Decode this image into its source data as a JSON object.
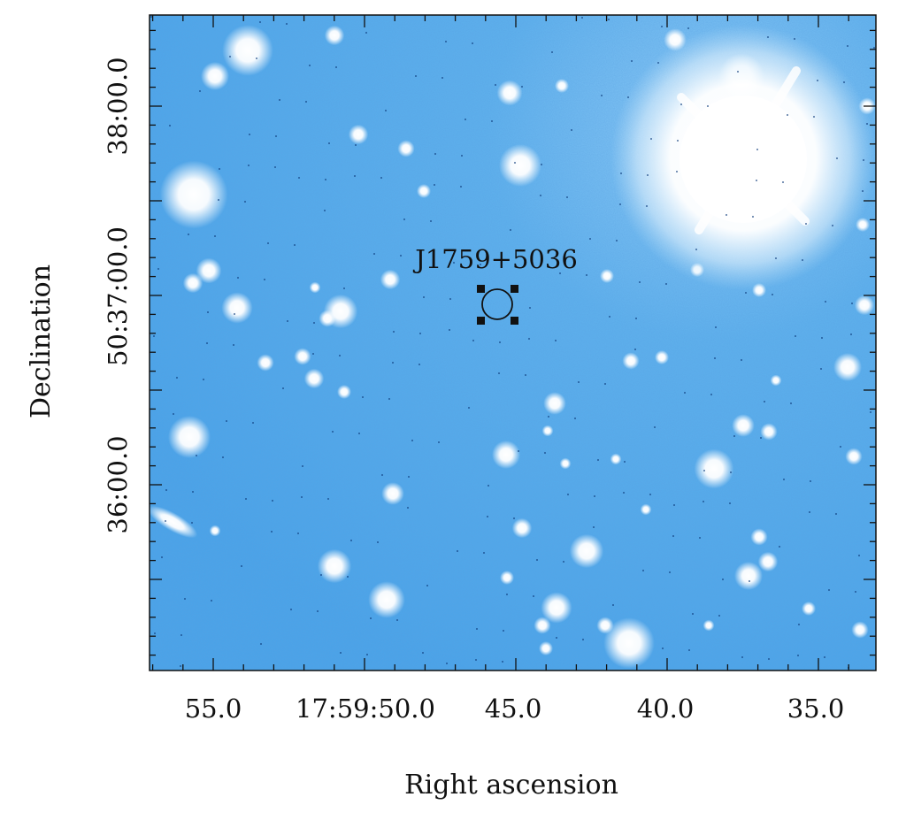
{
  "figure": {
    "target": {
      "label": "J1759+5036"
    },
    "x_axis": {
      "label": "Right ascension",
      "ticks": [
        {
          "label": "55.0"
        },
        {
          "label": "17:59:50.0"
        },
        {
          "label": "45.0"
        },
        {
          "label": "40.0"
        },
        {
          "label": "35.0"
        }
      ]
    },
    "y_axis": {
      "label": "Declination",
      "ticks": [
        {
          "label": "38:00.0"
        },
        {
          "label": "50:37:00.0"
        },
        {
          "label": "36:00.0"
        }
      ]
    },
    "colors": {
      "sky": "#4aa3e8",
      "sky_light": "#8cc8f5",
      "star": "#ffffff",
      "frame": "#111111"
    }
  }
}
